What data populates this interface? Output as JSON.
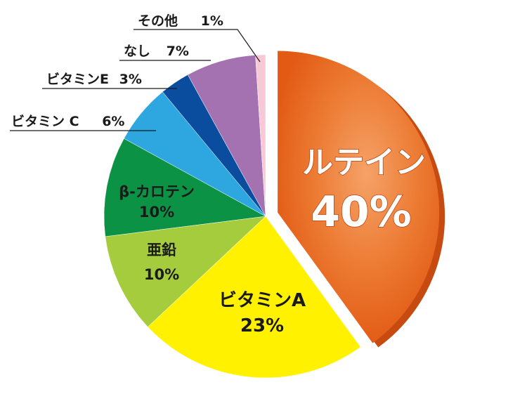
{
  "chart_data": {
    "type": "pie",
    "title": "",
    "slices": [
      {
        "label": "ルテイン",
        "value": 40,
        "value_text": "40%",
        "color": "#e9601a",
        "exploded": true
      },
      {
        "label": "ビタミンA",
        "value": 23,
        "value_text": "23%",
        "color": "#fff100"
      },
      {
        "label": "亜鉛",
        "value": 10,
        "value_text": "10%",
        "color": "#a5cc3c"
      },
      {
        "label": "β-カロテン",
        "value": 10,
        "value_text": "10%",
        "color": "#0c9245"
      },
      {
        "label": "ビタミン C",
        "value": 6,
        "value_text": "6%",
        "color": "#2ea7e0"
      },
      {
        "label": "ビタミンE",
        "value": 3,
        "value_text": "3%",
        "color": "#0a4d9e"
      },
      {
        "label": "なし",
        "value": 7,
        "value_text": "7%",
        "color": "#a472b0"
      },
      {
        "label": "その他",
        "value": 1,
        "value_text": "1%",
        "color": "#f7c8d6"
      }
    ]
  }
}
